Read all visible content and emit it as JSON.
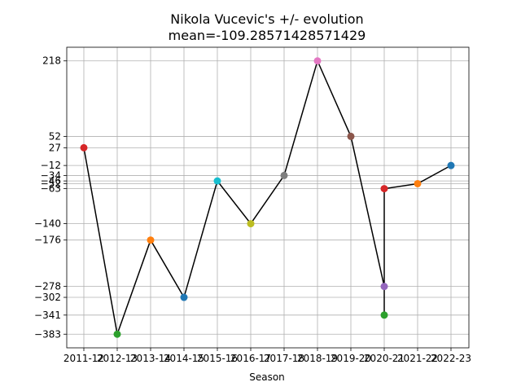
{
  "chart_data": {
    "type": "line",
    "title": "Nikola Vucevic's +/- evolution",
    "subtitle": "mean=-109.28571428571429",
    "xlabel": "Season",
    "ylabel": "",
    "categories": [
      "2011-12",
      "2012-13",
      "2013-14",
      "2014-15",
      "2015-16",
      "2016-17",
      "2017-18",
      "2018-19",
      "2019-20",
      "2020-21",
      "2021-22",
      "2022-23"
    ],
    "points": [
      {
        "x": "2011-12",
        "y": 27,
        "color": "#d62728"
      },
      {
        "x": "2012-13",
        "y": -383,
        "color": "#2ca02c"
      },
      {
        "x": "2013-14",
        "y": -176,
        "color": "#ff7f0e"
      },
      {
        "x": "2014-15",
        "y": -302,
        "color": "#1f77b4"
      },
      {
        "x": "2015-16",
        "y": -46,
        "color": "#17becf"
      },
      {
        "x": "2016-17",
        "y": -140,
        "color": "#bcbd22"
      },
      {
        "x": "2017-18",
        "y": -34,
        "color": "#7f7f7f"
      },
      {
        "x": "2018-19",
        "y": 218,
        "color": "#e377c2"
      },
      {
        "x": "2019-20",
        "y": 52,
        "color": "#8c564b"
      },
      {
        "x": "2020-21",
        "y": -278,
        "color": "#9467bd"
      },
      {
        "x": "2020-21",
        "y": -341,
        "color": "#2ca02c"
      },
      {
        "x": "2020-21",
        "y": -63,
        "color": "#d62728"
      },
      {
        "x": "2021-22",
        "y": -52,
        "color": "#ff7f0e"
      },
      {
        "x": "2022-23",
        "y": -12,
        "color": "#1f77b4"
      }
    ],
    "yticks": [
      218,
      52,
      27,
      -12,
      -34,
      -46,
      -52,
      -63,
      -140,
      -176,
      -278,
      -302,
      -341,
      -383
    ],
    "ylim": [
      -413,
      248
    ],
    "grid": true,
    "line_color": "#000000"
  }
}
